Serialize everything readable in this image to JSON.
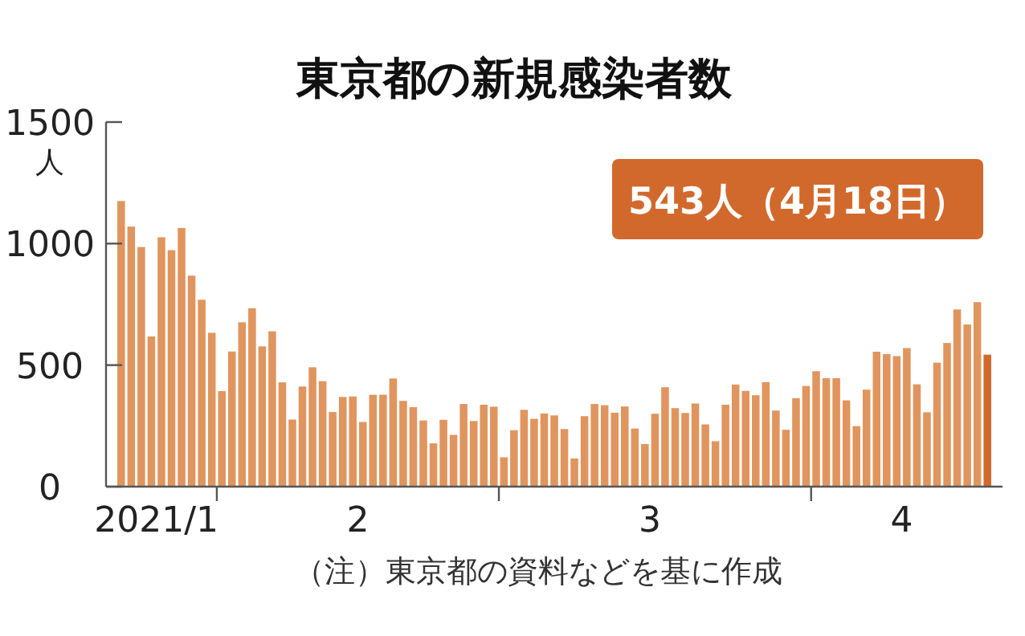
{
  "chart_data": {
    "type": "bar",
    "title": "東京都の新規感染者数",
    "ylabel": "人",
    "x": [
      "2021-01-22",
      "2021-01-23",
      "2021-01-24",
      "2021-01-25",
      "2021-01-26",
      "2021-01-27",
      "2021-01-28",
      "2021-01-29",
      "2021-01-30",
      "2021-01-31",
      "2021-02-01",
      "2021-02-02",
      "2021-02-03",
      "2021-02-04",
      "2021-02-05",
      "2021-02-06",
      "2021-02-07",
      "2021-02-08",
      "2021-02-09",
      "2021-02-10",
      "2021-02-11",
      "2021-02-12",
      "2021-02-13",
      "2021-02-14",
      "2021-02-15",
      "2021-02-16",
      "2021-02-17",
      "2021-02-18",
      "2021-02-19",
      "2021-02-20",
      "2021-02-21",
      "2021-02-22",
      "2021-02-23",
      "2021-02-24",
      "2021-02-25",
      "2021-02-26",
      "2021-02-27",
      "2021-02-28",
      "2021-03-01",
      "2021-03-02",
      "2021-03-03",
      "2021-03-04",
      "2021-03-05",
      "2021-03-06",
      "2021-03-07",
      "2021-03-08",
      "2021-03-09",
      "2021-03-10",
      "2021-03-11",
      "2021-03-12",
      "2021-03-13",
      "2021-03-14",
      "2021-03-15",
      "2021-03-16",
      "2021-03-17",
      "2021-03-18",
      "2021-03-19",
      "2021-03-20",
      "2021-03-21",
      "2021-03-22",
      "2021-03-23",
      "2021-03-24",
      "2021-03-25",
      "2021-03-26",
      "2021-03-27",
      "2021-03-28",
      "2021-03-29",
      "2021-03-30",
      "2021-03-31",
      "2021-04-01",
      "2021-04-02",
      "2021-04-03",
      "2021-04-04",
      "2021-04-05",
      "2021-04-06",
      "2021-04-07",
      "2021-04-08",
      "2021-04-09",
      "2021-04-10",
      "2021-04-11",
      "2021-04-12",
      "2021-04-13",
      "2021-04-14",
      "2021-04-15",
      "2021-04-16",
      "2021-04-17",
      "2021-04-18"
    ],
    "values": [
      1175,
      1070,
      986,
      618,
      1026,
      973,
      1064,
      868,
      769,
      633,
      393,
      556,
      676,
      734,
      577,
      639,
      429,
      276,
      412,
      491,
      434,
      307,
      369,
      371,
      266,
      378,
      378,
      445,
      353,
      327,
      272,
      178,
      275,
      213,
      340,
      270,
      337,
      329,
      121,
      232,
      316,
      279,
      301,
      293,
      237,
      116,
      290,
      340,
      335,
      304,
      330,
      239,
      175,
      300,
      409,
      323,
      303,
      342,
      256,
      187,
      337,
      420,
      394,
      376,
      430,
      313,
      234,
      364,
      414,
      475,
      446,
      446,
      355,
      249,
      399,
      555,
      545,
      537,
      570,
      421,
      306,
      510,
      591,
      729,
      667,
      759,
      543
    ],
    "colors": [
      "#e0955e",
      "#e0955e",
      "#e0955e",
      "#e0955e",
      "#e0955e",
      "#e0955e",
      "#e0955e",
      "#e0955e",
      "#e0955e",
      "#e0955e",
      "#e0955e",
      "#e0955e",
      "#e0955e",
      "#e0955e",
      "#e0955e",
      "#e0955e",
      "#e0955e",
      "#e0955e",
      "#e0955e",
      "#e0955e",
      "#e0955e",
      "#e0955e",
      "#e0955e",
      "#e0955e",
      "#e0955e",
      "#e0955e",
      "#e0955e",
      "#e0955e",
      "#e0955e",
      "#e0955e",
      "#e0955e",
      "#e0955e",
      "#e0955e",
      "#e0955e",
      "#e0955e",
      "#e0955e",
      "#e0955e",
      "#e0955e",
      "#e0955e",
      "#e0955e",
      "#e0955e",
      "#e0955e",
      "#e0955e",
      "#e0955e",
      "#e0955e",
      "#e0955e",
      "#e0955e",
      "#e0955e",
      "#e0955e",
      "#e0955e",
      "#e0955e",
      "#e0955e",
      "#e0955e",
      "#e0955e",
      "#e0955e",
      "#e0955e",
      "#e0955e",
      "#e0955e",
      "#e0955e",
      "#e0955e",
      "#e0955e",
      "#e0955e",
      "#e0955e",
      "#e0955e",
      "#e0955e",
      "#e0955e",
      "#e0955e",
      "#e0955e",
      "#e0955e",
      "#e0955e",
      "#e0955e",
      "#e0955e",
      "#e0955e",
      "#e0955e",
      "#e0955e",
      "#e0955e",
      "#e0955e",
      "#e0955e",
      "#e0955e",
      "#e0955e",
      "#e0955e",
      "#e0955e",
      "#e0955e",
      "#e0955e",
      "#e0955e",
      "#e0955e",
      "#d2692c"
    ],
    "xlim": [
      "2021-01-21",
      "2021-04-20"
    ],
    "xticks": [
      {
        "value": "2021-01-26",
        "label": "2021/1"
      },
      {
        "value": "2021-02-01",
        "label": null
      },
      {
        "value": "2021-02-15",
        "label": "2"
      },
      {
        "value": "2021-03-01",
        "label": null
      },
      {
        "value": "2021-03-16",
        "label": "3"
      },
      {
        "value": "2021-04-01",
        "label": null
      },
      {
        "value": "2021-04-10",
        "label": "4"
      }
    ],
    "ylim": [
      0,
      1500
    ],
    "yticks": [
      0,
      500,
      1000,
      1500
    ],
    "annotations": [
      "543人（4月18日）",
      "（注）東京都の資料などを基に作成"
    ]
  }
}
